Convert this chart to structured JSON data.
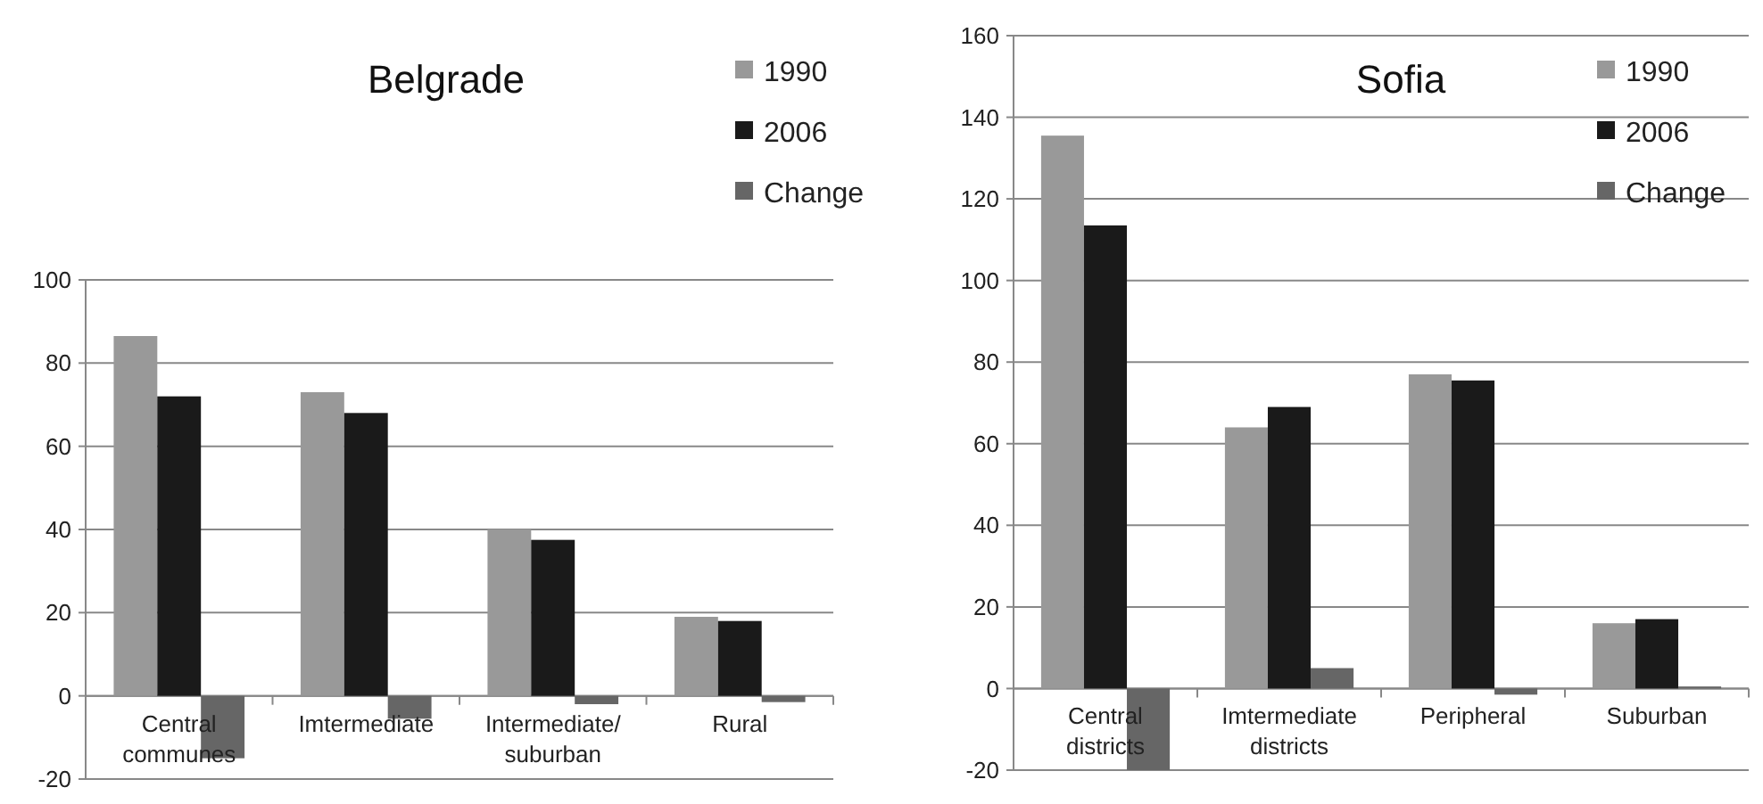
{
  "chart_data": [
    {
      "type": "bar",
      "title": "Belgrade",
      "categories": [
        "Central communes",
        "Imtermediate",
        "Intermediate/ suburban",
        "Rural"
      ],
      "series": [
        {
          "name": "1990",
          "color": "#999999",
          "values": [
            86.5,
            73,
            40,
            19
          ]
        },
        {
          "name": "2006",
          "color": "#1a1a1a",
          "values": [
            72,
            68,
            37.5,
            18
          ]
        },
        {
          "name": "Change",
          "color": "#666666",
          "values": [
            -15,
            -5.5,
            -2,
            -1.5
          ]
        }
      ],
      "ylim": [
        -20,
        100
      ],
      "yticks": [
        -20,
        0,
        20,
        40,
        60,
        80,
        100
      ],
      "grid": "y",
      "legend": "top right"
    },
    {
      "type": "bar",
      "title": "Sofia",
      "categories": [
        "Central districts",
        "Imtermediate districts",
        "Peripheral",
        "Suburban"
      ],
      "series": [
        {
          "name": "1990",
          "color": "#999999",
          "values": [
            135.5,
            64,
            77,
            16
          ]
        },
        {
          "name": "2006",
          "color": "#1a1a1a",
          "values": [
            113.5,
            69,
            75.5,
            17
          ]
        },
        {
          "name": "Change",
          "color": "#666666",
          "values": [
            -20,
            5,
            -1.5,
            0.5
          ]
        }
      ],
      "ylim": [
        -20,
        160
      ],
      "yticks": [
        -20,
        0,
        20,
        40,
        60,
        80,
        100,
        120,
        140,
        160
      ],
      "grid": "y",
      "legend": "top right"
    }
  ]
}
